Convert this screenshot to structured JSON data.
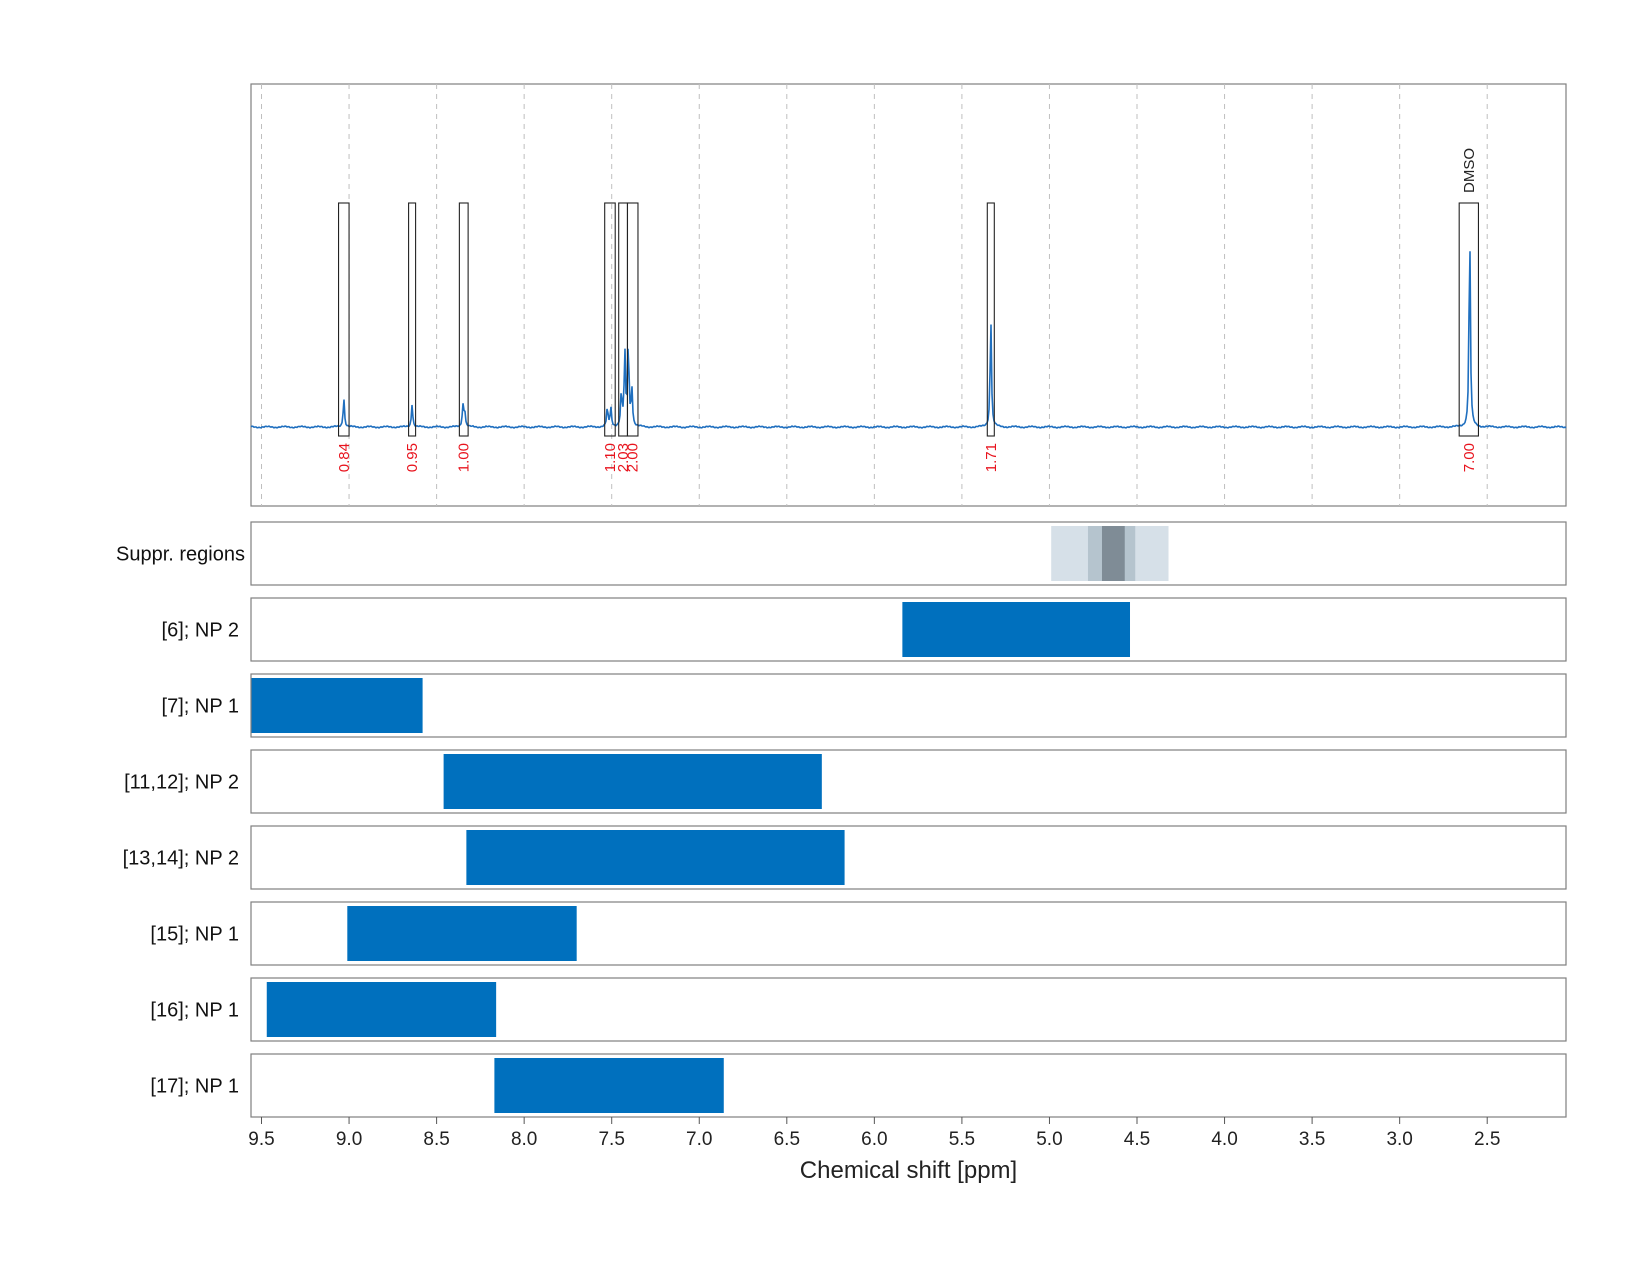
{
  "chart_data": {
    "type": "nmr-spectrum-with-range-bars",
    "xlabel": "Chemical shift [ppm]",
    "xlim": [
      9.56,
      2.05
    ],
    "x_ticks": [
      9.5,
      9.0,
      8.5,
      8.0,
      7.5,
      7.0,
      6.5,
      6.0,
      5.5,
      5.0,
      4.5,
      4.0,
      3.5,
      3.0,
      2.5
    ],
    "x_tick_labels": [
      "9.5",
      "9.0",
      "8.5",
      "8.0",
      "7.5",
      "7.0",
      "6.5",
      "6.0",
      "5.5",
      "5.0",
      "4.5",
      "4.0",
      "3.5",
      "3.0",
      "2.5"
    ],
    "spectrum_peaks": [
      {
        "shift": 9.03,
        "height": 0.14
      },
      {
        "shift": 8.64,
        "height": 0.11
      },
      {
        "shift": 8.35,
        "height": 0.1
      },
      {
        "shift": 8.34,
        "height": 0.08
      },
      {
        "shift": 7.525,
        "height": 0.09
      },
      {
        "shift": 7.505,
        "height": 0.09
      },
      {
        "shift": 7.445,
        "height": 0.16
      },
      {
        "shift": 7.425,
        "height": 0.35
      },
      {
        "shift": 7.405,
        "height": 0.4
      },
      {
        "shift": 7.385,
        "height": 0.18
      },
      {
        "shift": 5.335,
        "height": 0.52
      },
      {
        "shift": 2.6,
        "height": 0.95
      }
    ],
    "integration_regions": [
      {
        "from": 9.06,
        "to": 9.0,
        "value": "0.84",
        "color": "#e8141e"
      },
      {
        "from": 8.66,
        "to": 8.62,
        "value": "0.95",
        "color": "#e8141e"
      },
      {
        "from": 8.37,
        "to": 8.32,
        "value": "1.00",
        "color": "#e8141e"
      },
      {
        "from": 7.54,
        "to": 7.48,
        "value": "1.10",
        "color": "#e8141e"
      },
      {
        "from": 7.46,
        "to": 7.41,
        "value": "2.03",
        "color": "#e8141e"
      },
      {
        "from": 7.41,
        "to": 7.35,
        "value": "2.00",
        "color": "#e8141e"
      },
      {
        "from": 5.355,
        "to": 5.315,
        "value": "1.71",
        "color": "#e8141e"
      },
      {
        "from": 2.66,
        "to": 2.55,
        "value": "7.00",
        "color": "#e8141e",
        "annotation": "DMSO"
      }
    ],
    "suppression": {
      "label": "Suppr. regions",
      "bands": [
        {
          "from": 4.99,
          "to": 4.32,
          "color": "#d6e0e8"
        },
        {
          "from": 4.78,
          "to": 4.51,
          "color": "#b5c4ce"
        },
        {
          "from": 4.7,
          "to": 4.57,
          "color": "#7f8c96"
        }
      ]
    },
    "rows": [
      {
        "label": "[6]; NP 2",
        "from": 5.84,
        "to": 4.54
      },
      {
        "label": "[7]; NP 1",
        "from": 9.56,
        "to": 8.58
      },
      {
        "label": "[11,12]; NP 2",
        "from": 8.46,
        "to": 6.3
      },
      {
        "label": "[13,14]; NP 2",
        "from": 8.33,
        "to": 6.17
      },
      {
        "label": "[15]; NP 1",
        "from": 9.01,
        "to": 7.7
      },
      {
        "label": "[16]; NP 1",
        "from": 9.47,
        "to": 8.16
      },
      {
        "label": "[17]; NP 1",
        "from": 8.17,
        "to": 6.86
      }
    ],
    "bar_color": "#0070be",
    "spectrum_color": "#1f6fbf",
    "annotation_color": "#222222"
  }
}
